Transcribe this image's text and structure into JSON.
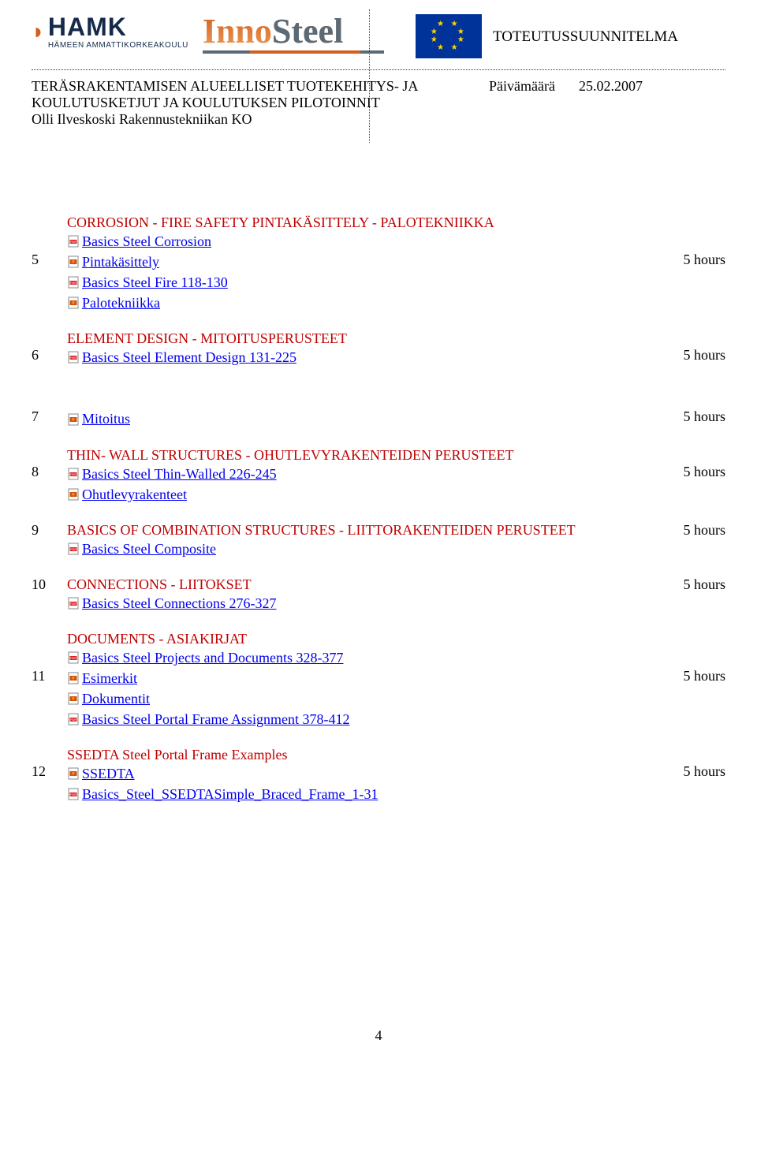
{
  "header": {
    "doc_type": "TOTEUTUSSUUNNITELMA",
    "date_label": "Päivämäärä",
    "date_value": "25.02.2007",
    "line1": "TERÄSRAKENTAMISEN ALUEELLISET TUOTEKEHITYS- JA",
    "line2": "KOULUTUSKETJUT JA KOULUTUKSEN PILOTOINNIT",
    "line3": "Olli Ilveskoski  Rakennustekniikan KO"
  },
  "icons": {
    "pdf": "pdf-icon",
    "ppt": "ppt-icon"
  },
  "rows": [
    {
      "num": "5",
      "hours": "5 hours",
      "section_title": "CORROSION - FIRE SAFETY  PINTAKÄSITTELY - PALOTEKNIIKKA",
      "items": [
        {
          "icon": "pdf",
          "text": "Basics Steel Corrosion"
        },
        {
          "icon": "ppt",
          "text": "Pintakäsittely"
        },
        {
          "icon": "pdf",
          "text": "Basics Steel Fire 118-130"
        },
        {
          "icon": "ppt",
          "text": "Palotekniikka"
        }
      ],
      "hours_align_index": 1
    },
    {
      "num": "6",
      "hours": "5 hours",
      "section_title": "ELEMENT DESIGN - MITOITUSPERUSTEET",
      "items": [
        {
          "icon": "pdf",
          "text": "Basics Steel Element Design 131-225"
        }
      ],
      "hours_align_index": 0
    },
    {
      "num": "7",
      "hours": "5 hours",
      "items": [
        {
          "icon": "ppt",
          "text": "Mitoitus"
        }
      ],
      "hours_align_index": 0
    },
    {
      "num": "8",
      "hours": "5 hours",
      "section_title": "THIN- WALL STRUCTURES - OHUTLEVYRAKENTEIDEN PERUSTEET",
      "items": [
        {
          "icon": "pdf",
          "text": "Basics Steel Thin-Walled 226-245"
        },
        {
          "icon": "ppt",
          "text": "Ohutlevyrakenteet"
        }
      ],
      "hours_align_index": 0
    },
    {
      "num": "9",
      "hours": "5 hours",
      "section_title": "BASICS OF COMBINATION STRUCTURES -  LIITTORAKENTEIDEN PERUSTEET",
      "items": [
        {
          "icon": "pdf",
          "text": "Basics Steel Composite"
        }
      ],
      "num_mid": true,
      "hours_align_index": -1
    },
    {
      "num": "10",
      "hours": "5 hours",
      "section_title": "CONNECTIONS - LIITOKSET",
      "items": [
        {
          "icon": "pdf",
          "text": "Basics Steel Connections 276-327"
        }
      ],
      "num_mid": true,
      "hours_align_index": -1
    },
    {
      "num": "11",
      "hours": "5 hours",
      "section_title": "DOCUMENTS - ASIAKIRJAT",
      "items": [
        {
          "icon": "pdf",
          "text": "Basics Steel Projects and Documents 328-377"
        },
        {
          "icon": "ppt",
          "text": "Esimerkit"
        },
        {
          "icon": "ppt",
          "text": "Dokumentit"
        },
        {
          "icon": "pdf",
          "text": "Basics Steel Portal Frame Assignment 378-412"
        }
      ],
      "hours_align_index": 1
    },
    {
      "num": "12",
      "hours": "5 hours",
      "section_title": "SSEDTA   Steel Portal Frame Examples",
      "items": [
        {
          "icon": "ppt",
          "text": "SSEDTA"
        },
        {
          "icon": "pdf",
          "text": "Basics_Steel_SSEDTASimple_Braced_Frame_1-31"
        }
      ],
      "hours_align_index": 0
    }
  ],
  "page_number": "4"
}
